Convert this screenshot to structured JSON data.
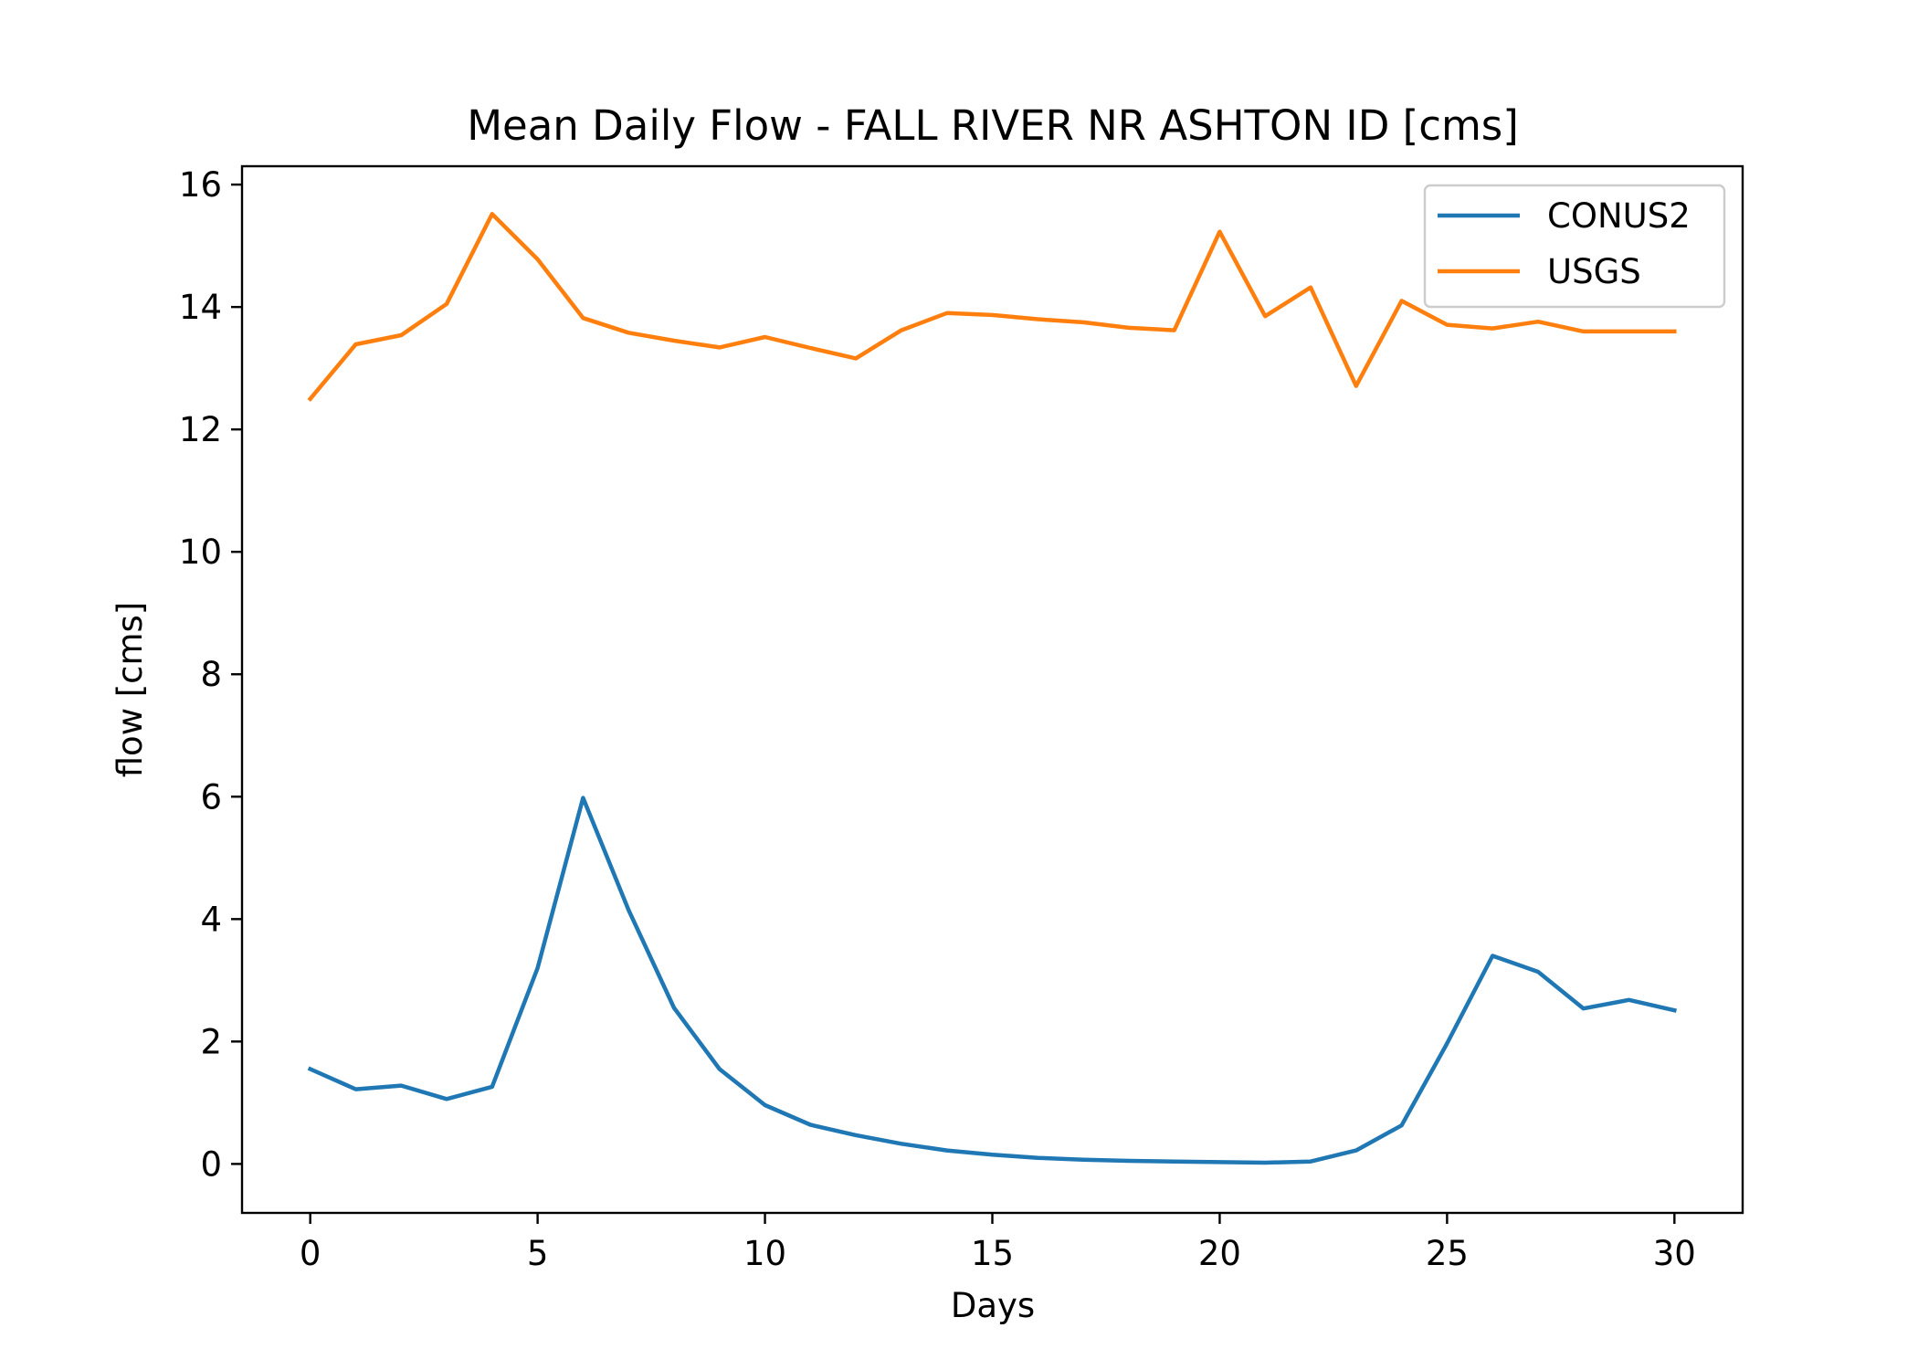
{
  "chart_data": {
    "type": "line",
    "title": "Mean Daily Flow - FALL RIVER NR ASHTON ID [cms]",
    "xlabel": "Days",
    "ylabel": "flow [cms]",
    "xlim": [
      -1.5,
      31.5
    ],
    "ylim": [
      -0.8,
      16.3
    ],
    "xticks": [
      0,
      5,
      10,
      15,
      20,
      25,
      30
    ],
    "yticks": [
      0,
      2,
      4,
      6,
      8,
      10,
      12,
      14,
      16
    ],
    "grid": false,
    "legend_position": "upper-right",
    "x": [
      0,
      1,
      2,
      3,
      4,
      5,
      6,
      7,
      8,
      9,
      10,
      11,
      12,
      13,
      14,
      15,
      16,
      17,
      18,
      19,
      20,
      21,
      22,
      23,
      24,
      25,
      26,
      27,
      28,
      29,
      30
    ],
    "series": [
      {
        "name": "CONUS2",
        "color": "#1f77b4",
        "values": [
          1.55,
          1.22,
          1.28,
          1.06,
          1.26,
          3.2,
          5.98,
          4.15,
          2.55,
          1.55,
          0.96,
          0.64,
          0.47,
          0.33,
          0.22,
          0.15,
          0.1,
          0.07,
          0.05,
          0.04,
          0.03,
          0.02,
          0.04,
          0.22,
          0.63,
          1.97,
          3.4,
          3.14,
          2.54,
          2.68,
          2.51
        ]
      },
      {
        "name": "USGS",
        "color": "#ff7f0e",
        "values": [
          12.5,
          13.39,
          13.54,
          14.05,
          15.52,
          14.78,
          13.82,
          13.58,
          13.45,
          13.34,
          13.51,
          13.33,
          13.16,
          13.62,
          13.9,
          13.87,
          13.8,
          13.75,
          13.66,
          13.62,
          15.23,
          13.85,
          14.32,
          12.71,
          14.1,
          13.71,
          13.65,
          13.76,
          13.6,
          13.6,
          13.6
        ]
      }
    ]
  }
}
